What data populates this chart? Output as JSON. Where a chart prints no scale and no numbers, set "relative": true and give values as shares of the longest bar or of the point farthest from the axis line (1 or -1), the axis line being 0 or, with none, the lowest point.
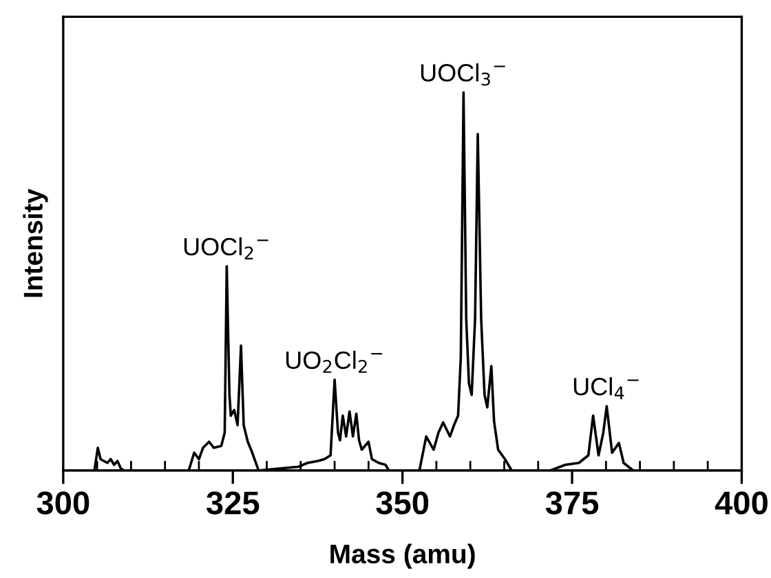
{
  "chart_data": {
    "type": "line",
    "relative": true,
    "xlabel": "Mass (amu)",
    "ylabel": "Intensity",
    "xlim": [
      300,
      400
    ],
    "xticks": [
      300,
      {
        "value": 305,
        "label": null
      },
      {
        "value": 310,
        "label": null
      },
      {
        "value": 315,
        "label": null
      },
      {
        "value": 320,
        "label": null
      },
      325,
      {
        "value": 330,
        "label": null
      },
      {
        "value": 335,
        "label": null
      },
      {
        "value": 340,
        "label": null
      },
      {
        "value": 345,
        "label": null
      },
      350,
      {
        "value": 355,
        "label": null
      },
      {
        "value": 360,
        "label": null
      },
      {
        "value": 365,
        "label": null
      },
      {
        "value": 370,
        "label": null
      },
      375,
      {
        "value": 380,
        "label": null
      },
      {
        "value": 385,
        "label": null
      },
      {
        "value": 390,
        "label": null
      },
      {
        "value": 395,
        "label": null
      },
      400
    ],
    "tick_labels": "x",
    "grid": false,
    "legend": false,
    "marker": "none",
    "line_style": "solid",
    "series": [
      {
        "color": "#000000",
        "x": [
          300,
          304.6,
          305.1,
          305.5,
          306,
          306.5,
          307,
          307.5,
          308,
          308.5,
          309,
          318.5,
          319.3,
          320,
          320.6,
          321.5,
          322.2,
          323.3,
          323.8,
          324.1,
          324.5,
          324.7,
          325.2,
          325.7,
          326.2,
          326.6,
          327.2,
          327.8,
          328.8,
          334.7,
          336,
          337.5,
          338.5,
          339.4,
          340,
          340.5,
          340.8,
          341.2,
          341.7,
          342.2,
          342.7,
          343.2,
          343.6,
          344,
          345,
          345.5,
          346.5,
          347.5,
          348,
          352.5,
          353.5,
          354.6,
          355.3,
          356,
          357,
          357.6,
          358.2,
          358.6,
          359,
          359.4,
          359.8,
          360.2,
          360.7,
          361.1,
          361.6,
          362.1,
          362.5,
          363.1,
          363.5,
          364.1,
          365.1,
          366.1,
          371.8,
          374,
          376,
          377.4,
          378.1,
          378.9,
          379.6,
          380.1,
          380.9,
          381.9,
          382.6,
          384,
          400
        ],
        "values": [
          0,
          0,
          0.06,
          0.03,
          0.025,
          0.02,
          0.03,
          0.015,
          0.025,
          0.005,
          0,
          0,
          0.047,
          0.03,
          0.06,
          0.076,
          0.06,
          0.065,
          0.1,
          0.54,
          0.2,
          0.145,
          0.16,
          0.12,
          0.33,
          0.12,
          0.076,
          0.05,
          0,
          0.01,
          0.02,
          0.025,
          0.03,
          0.04,
          0.24,
          0.1,
          0.08,
          0.145,
          0.09,
          0.156,
          0.09,
          0.15,
          0.08,
          0.055,
          0.076,
          0.03,
          0.02,
          0.015,
          0,
          0,
          0.09,
          0.055,
          0.1,
          0.127,
          0.09,
          0.12,
          0.145,
          0.3,
          1.0,
          0.4,
          0.23,
          0.2,
          0.4,
          0.89,
          0.4,
          0.2,
          0.167,
          0.276,
          0.13,
          0.055,
          0.03,
          0,
          0,
          0.015,
          0.02,
          0.04,
          0.145,
          0.04,
          0.1,
          0.17,
          0.047,
          0.073,
          0.02,
          0,
          0
        ]
      }
    ],
    "annotations": [
      {
        "text": "UOCl$_{2}$$^{−}$",
        "x": 324.1,
        "y": 0.54
      },
      {
        "text": "UO$_{2}$Cl$_{2}$$^{−}$",
        "x": 340,
        "y": 0.24
      },
      {
        "text": "UOCl$_{3}$$^{−}$",
        "x": 359,
        "y": 1.0
      },
      {
        "text": "UCl$_{4}$$^{−}$",
        "x": 380.1,
        "y": 0.17
      }
    ]
  }
}
